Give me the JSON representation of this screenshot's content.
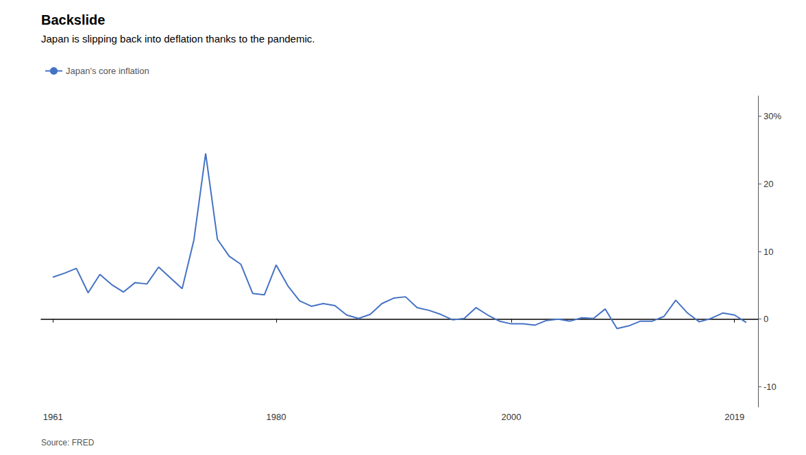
{
  "chart_data": {
    "type": "line",
    "title": "Backslide",
    "subtitle": "Japan is slipping back into deflation thanks to the pandemic.",
    "annotations": [
      "Source: FRED"
    ],
    "legend": "top-left",
    "grid": false,
    "xlim": [
      1960,
      2021
    ],
    "xticks": [
      1961,
      1980,
      2000,
      2019
    ],
    "ylim": [
      -13,
      33
    ],
    "yticks": [
      -10,
      0,
      10,
      20,
      {
        "value": 30,
        "label": "30%"
      }
    ],
    "x": [
      1961,
      1962,
      1963,
      1964,
      1965,
      1966,
      1967,
      1968,
      1969,
      1970,
      1971,
      1972,
      1973,
      1974,
      1975,
      1976,
      1977,
      1978,
      1979,
      1980,
      1981,
      1982,
      1983,
      1984,
      1985,
      1986,
      1987,
      1988,
      1989,
      1990,
      1991,
      1992,
      1993,
      1994,
      1995,
      1996,
      1997,
      1998,
      1999,
      2000,
      2001,
      2002,
      2003,
      2004,
      2005,
      2006,
      2007,
      2008,
      2009,
      2010,
      2011,
      2012,
      2013,
      2014,
      2015,
      2016,
      2017,
      2018,
      2019,
      2020
    ],
    "series": [
      {
        "name": "Japan's core inflation",
        "color": "#4472C4",
        "values": [
          6.2,
          6.8,
          7.5,
          3.9,
          6.6,
          5.1,
          4.0,
          5.4,
          5.2,
          7.7,
          6.1,
          4.5,
          11.7,
          24.5,
          11.8,
          9.3,
          8.1,
          3.8,
          3.6,
          8.0,
          4.9,
          2.7,
          1.9,
          2.3,
          2.0,
          0.6,
          0.1,
          0.7,
          2.3,
          3.1,
          3.3,
          1.7,
          1.3,
          0.7,
          -0.1,
          0.1,
          1.7,
          0.6,
          -0.3,
          -0.7,
          -0.7,
          -0.9,
          -0.2,
          0.0,
          -0.3,
          0.2,
          0.1,
          1.5,
          -1.4,
          -1.0,
          -0.3,
          -0.3,
          0.4,
          2.8,
          0.9,
          -0.4,
          0.1,
          0.9,
          0.6,
          -0.5
        ]
      }
    ]
  }
}
